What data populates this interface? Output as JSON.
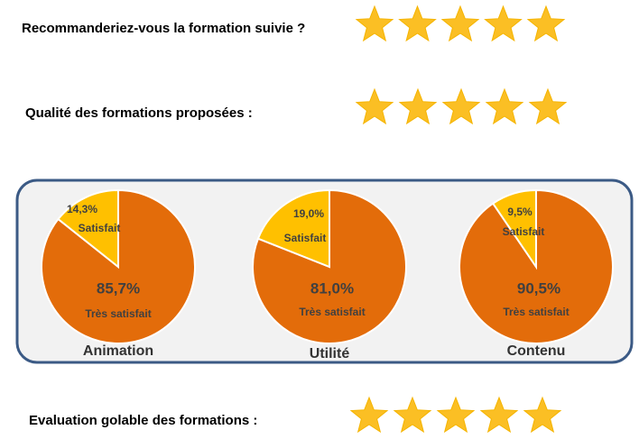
{
  "ratings": [
    {
      "label": "Recommanderiez-vous la formation suivie ?",
      "stars": 5
    },
    {
      "label": "Qualité des formations proposées :",
      "stars": 5
    },
    {
      "label": "Evaluation golable des formations :",
      "stars": 5
    }
  ],
  "chart_data": [
    {
      "type": "pie",
      "title": "Animation",
      "categories": [
        "Très satisfait",
        "Satisfait"
      ],
      "values": [
        85.7,
        14.3
      ],
      "value_labels": [
        "85,7%",
        "14,3%"
      ],
      "colors": [
        "#e36c0a",
        "#ffc000"
      ]
    },
    {
      "type": "pie",
      "title": "Utilité",
      "categories": [
        "Très satisfait",
        "Satisfait"
      ],
      "values": [
        81.0,
        19.0
      ],
      "value_labels": [
        "81,0%",
        "19,0%"
      ],
      "colors": [
        "#e36c0a",
        "#ffc000"
      ]
    },
    {
      "type": "pie",
      "title": "Contenu",
      "categories": [
        "Très satisfait",
        "Satisfait"
      ],
      "values": [
        90.5,
        9.5
      ],
      "value_labels": [
        "90,5%",
        "9,5%"
      ],
      "colors": [
        "#e36c0a",
        "#ffc000"
      ]
    }
  ]
}
